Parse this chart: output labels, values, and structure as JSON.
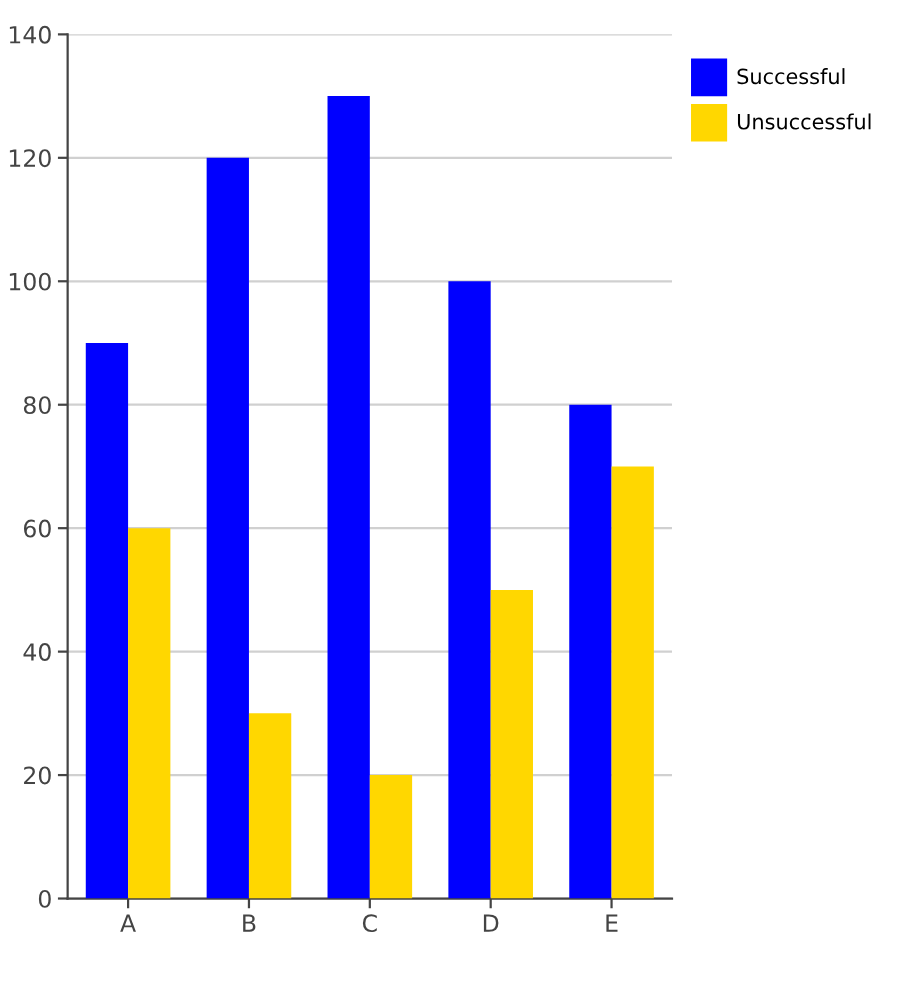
{
  "chart_data": {
    "type": "bar",
    "categories": [
      "A",
      "B",
      "C",
      "D",
      "E"
    ],
    "series": [
      {
        "name": "Successful",
        "color": "#0000ff",
        "values": [
          90,
          120,
          130,
          100,
          80
        ]
      },
      {
        "name": "Unsuccessful",
        "color": "#ffd700",
        "values": [
          60,
          30,
          20,
          50,
          70
        ]
      }
    ],
    "ylim": [
      0,
      140
    ],
    "yticks": [
      0,
      20,
      40,
      60,
      80,
      100,
      120,
      140
    ],
    "grid": "y",
    "legend": "top right"
  }
}
